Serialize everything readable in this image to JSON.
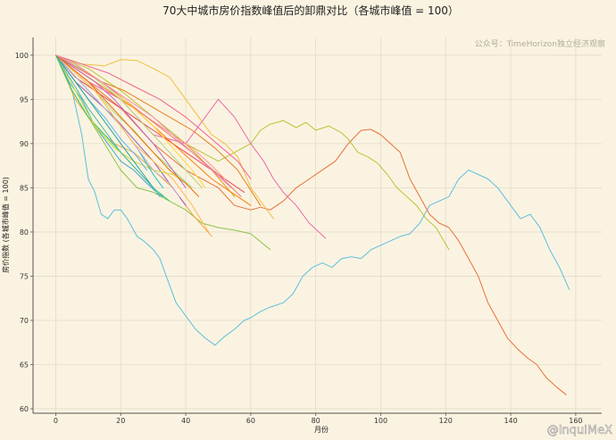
{
  "chart_data": {
    "type": "line",
    "title": "70大中城市房价指数峰值后的卸鼎对比（各城市峰值 = 100）",
    "xlabel": "月份",
    "ylabel": "房价指数 (各城市峰值 = 100)",
    "xlim": [
      -7,
      168
    ],
    "ylim": [
      59.5,
      102
    ],
    "xticks": [
      0,
      20,
      40,
      60,
      80,
      100,
      120,
      140,
      160
    ],
    "xtick_labels": [
      "0",
      "20",
      "40",
      "60",
      "80",
      "100",
      "120",
      "140",
      "160"
    ],
    "yticks": [
      60,
      65,
      70,
      75,
      80,
      85,
      90,
      95,
      100
    ],
    "ytick_labels": [
      "60",
      "65",
      "70",
      "75",
      "80",
      "85",
      "90",
      "95",
      "100"
    ],
    "grid": true,
    "watermark": "公众号：TimeHorizon独立经济观察",
    "credit": "@InquiMeX",
    "series": [
      {
        "color": "#5bc0de",
        "x": [
          0,
          5,
          8,
          10,
          12,
          14,
          16,
          18,
          20,
          22,
          25,
          27,
          30,
          32,
          35,
          37,
          40,
          43,
          46,
          49,
          52,
          55,
          58,
          60,
          63,
          66,
          70,
          73,
          76,
          79,
          82,
          85,
          88,
          91,
          94,
          97,
          100,
          103,
          106,
          109,
          112,
          115,
          118,
          121,
          124,
          127,
          130,
          133,
          136,
          140,
          143,
          146,
          149,
          152,
          155,
          158
        ],
        "y": [
          100,
          96,
          91,
          86,
          84.5,
          82,
          81.5,
          82.5,
          82.5,
          81.5,
          79.5,
          79,
          78,
          77,
          74,
          72,
          70.5,
          69,
          68,
          67.2,
          68.2,
          69,
          70,
          70.3,
          71,
          71.5,
          72,
          73,
          75,
          76,
          76.5,
          76,
          77,
          77.2,
          77,
          78,
          78.5,
          79,
          79.5,
          79.8,
          81,
          83,
          83.5,
          84,
          86,
          87,
          86.5,
          86,
          85,
          83,
          81.5,
          82,
          80.5,
          78,
          76,
          73.5
        ]
      },
      {
        "color": "#e8703a",
        "x": [
          0,
          10,
          20,
          30,
          40,
          50,
          55,
          60,
          63,
          66,
          70,
          74,
          78,
          82,
          86,
          90,
          94,
          97,
          100,
          103,
          106,
          109,
          112,
          115,
          118,
          121,
          124,
          127,
          130,
          133,
          136,
          139,
          142,
          145,
          148,
          151,
          154,
          157
        ],
        "y": [
          100,
          97,
          94,
          90,
          87,
          85,
          83,
          82.5,
          82.8,
          82.5,
          83.5,
          85,
          86,
          87,
          88,
          90,
          91.5,
          91.6,
          91,
          90,
          89,
          86,
          84,
          82,
          81,
          80.5,
          79,
          77,
          75,
          72,
          70,
          68,
          66.8,
          65.8,
          65,
          63.5,
          62.5,
          61.6
        ]
      },
      {
        "color": "#b5c637",
        "x": [
          0,
          10,
          20,
          30,
          40,
          50,
          55,
          60,
          63,
          66,
          70,
          74,
          77,
          80,
          84,
          88,
          90,
          93,
          96,
          99,
          102,
          105,
          108,
          111,
          114,
          117,
          121
        ],
        "y": [
          100,
          98.5,
          96,
          93,
          90,
          88,
          89,
          90,
          91.5,
          92.2,
          92.6,
          91.8,
          92.4,
          91.5,
          92,
          91.2,
          90.5,
          89,
          88.5,
          87.8,
          86.5,
          85,
          84,
          83,
          81.5,
          80.5,
          78
        ]
      },
      {
        "color": "#f0c041",
        "x": [
          0,
          8,
          15,
          20,
          25,
          30,
          35,
          40,
          44,
          48,
          52,
          56,
          60,
          64,
          67
        ],
        "y": [
          100,
          99,
          98.8,
          99.5,
          99.4,
          98.5,
          97.5,
          95,
          93,
          91,
          90,
          88.5,
          85,
          83,
          81.5
        ]
      },
      {
        "color": "#e86aa8",
        "x": [
          0,
          10,
          20,
          30,
          40,
          46,
          50,
          55,
          60,
          64,
          67,
          70,
          74,
          78,
          83
        ],
        "y": [
          100,
          97,
          95,
          91,
          90,
          93,
          95,
          93,
          90,
          88,
          86,
          84.5,
          83,
          81,
          79.3
        ]
      },
      {
        "color": "#8bc34a",
        "x": [
          0,
          5,
          10,
          15,
          20,
          25,
          30,
          35,
          40,
          45,
          50,
          55,
          60,
          66
        ],
        "y": [
          100,
          96,
          93,
          90,
          87,
          85,
          84.5,
          83.5,
          82.5,
          81,
          80.5,
          80.2,
          79.8,
          78
        ]
      },
      {
        "color": "#f4a742",
        "x": [
          0,
          6,
          12,
          18,
          24,
          30,
          36,
          42,
          48
        ],
        "y": [
          100,
          95,
          92,
          90,
          89,
          87,
          85,
          82,
          79.5
        ]
      },
      {
        "color": "#3fa7d6",
        "x": [
          0,
          4,
          8,
          12,
          16,
          20,
          24,
          28,
          31,
          33
        ],
        "y": [
          100,
          97,
          95,
          92,
          90,
          88,
          87,
          85.5,
          84.5,
          84
        ]
      },
      {
        "color": "#e94b5a",
        "x": [
          0,
          6,
          12,
          18,
          24,
          30,
          36,
          42,
          48,
          54,
          58
        ],
        "y": [
          100,
          97.5,
          96,
          94.5,
          93,
          91.5,
          90,
          88.5,
          87,
          85.5,
          84.5
        ]
      },
      {
        "color": "#9b59b6",
        "x": [
          0,
          6,
          12,
          18,
          24,
          30,
          36,
          40
        ],
        "y": [
          100,
          97,
          95,
          93,
          90.5,
          88,
          85,
          83
        ]
      },
      {
        "color": "#2ecc71",
        "x": [
          0,
          5,
          10,
          15,
          20,
          25,
          30,
          35
        ],
        "y": [
          100,
          96,
          93,
          91,
          89,
          87,
          85,
          83.5
        ]
      },
      {
        "color": "#d4a017",
        "x": [
          0,
          8,
          16,
          24,
          32,
          40,
          48,
          55
        ],
        "y": [
          100,
          98,
          96,
          94,
          92,
          90,
          87,
          84
        ]
      },
      {
        "color": "#e67e22",
        "x": [
          0,
          7,
          14,
          21,
          28,
          35,
          42,
          49,
          56,
          63
        ],
        "y": [
          100,
          98.5,
          97,
          96,
          94.5,
          93,
          91.5,
          89.5,
          87,
          83
        ]
      },
      {
        "color": "#cddc39",
        "x": [
          0,
          6,
          12,
          18,
          24,
          30,
          36,
          40
        ],
        "y": [
          100,
          96,
          92,
          89.5,
          88,
          87,
          86.5,
          85.5
        ]
      },
      {
        "color": "#17becf",
        "x": [
          0,
          5,
          10,
          15,
          20,
          25,
          30,
          33
        ],
        "y": [
          100,
          98,
          96,
          94,
          92,
          89.5,
          86.5,
          85
        ]
      },
      {
        "color": "#ff7f0e",
        "x": [
          0,
          6,
          12,
          18,
          24,
          30,
          36,
          42,
          48,
          54,
          60
        ],
        "y": [
          100,
          98.5,
          97,
          95.5,
          94,
          92,
          90,
          88,
          86,
          84.5,
          83
        ]
      },
      {
        "color": "#ff9896",
        "x": [
          0,
          6,
          12,
          18,
          24,
          30,
          36,
          42,
          48,
          52
        ],
        "y": [
          100,
          99,
          97.5,
          96,
          94,
          92.5,
          91,
          89.5,
          87.5,
          86
        ]
      },
      {
        "color": "#c5b0d5",
        "x": [
          0,
          5,
          10,
          15,
          20,
          25,
          30,
          35,
          38
        ],
        "y": [
          100,
          98,
          96,
          94,
          92,
          89.5,
          87,
          85.5,
          84
        ]
      },
      {
        "color": "#98df8a",
        "x": [
          0,
          6,
          12,
          18,
          24,
          30,
          36,
          42
        ],
        "y": [
          100,
          98,
          96,
          93.5,
          91.5,
          89,
          87,
          85
        ]
      },
      {
        "color": "#f06292",
        "x": [
          0,
          8,
          16,
          24,
          32,
          40,
          48,
          56,
          60
        ],
        "y": [
          100,
          99,
          98,
          96.5,
          95,
          93,
          90.5,
          88,
          86
        ]
      },
      {
        "color": "#4db6ac",
        "x": [
          0,
          5,
          10,
          15,
          20,
          25,
          30,
          32
        ],
        "y": [
          100,
          97,
          94,
          91.5,
          89,
          87,
          85,
          84
        ]
      },
      {
        "color": "#ffb74d",
        "x": [
          0,
          6,
          12,
          18,
          24,
          30,
          36,
          42,
          47
        ],
        "y": [
          100,
          98,
          96,
          93,
          90,
          88,
          86,
          83,
          80
        ]
      },
      {
        "color": "#aed581",
        "x": [
          0,
          5,
          10,
          15,
          20,
          25,
          30,
          35,
          40,
          45
        ],
        "y": [
          100,
          99,
          98,
          96.5,
          95,
          93,
          91,
          89,
          87,
          85
        ]
      },
      {
        "color": "#ba68c8",
        "x": [
          0,
          6,
          12,
          18,
          24,
          30,
          36,
          40
        ],
        "y": [
          100,
          98.5,
          97,
          95,
          92.5,
          90,
          87,
          85
        ]
      },
      {
        "color": "#e57373",
        "x": [
          0,
          7,
          14,
          21,
          28,
          35,
          42,
          50,
          57
        ],
        "y": [
          100,
          98.5,
          97,
          95,
          93,
          91,
          89,
          86.5,
          84
        ]
      },
      {
        "color": "#64b5f6",
        "x": [
          0,
          5,
          10,
          15,
          20,
          25,
          28
        ],
        "y": [
          100,
          97.5,
          95,
          93,
          90.5,
          88.5,
          87
        ]
      },
      {
        "color": "#fdd835",
        "x": [
          0,
          6,
          12,
          18,
          24,
          30,
          36,
          42,
          46
        ],
        "y": [
          100,
          99,
          97.5,
          96,
          94,
          92,
          89.5,
          87,
          85
        ]
      },
      {
        "color": "#ef6c00",
        "x": [
          0,
          5,
          10,
          15,
          20,
          25,
          30,
          35,
          40,
          44
        ],
        "y": [
          100,
          98.5,
          97,
          95,
          93,
          91,
          89,
          87,
          85.5,
          84
        ]
      },
      {
        "color": "#26a69a",
        "x": [
          0,
          4,
          8,
          12,
          16,
          20,
          24,
          28,
          30
        ],
        "y": [
          100,
          98,
          96,
          94,
          92,
          90,
          88,
          86,
          85
        ]
      },
      {
        "color": "#f48fb1",
        "x": [
          0,
          6,
          12,
          18,
          24,
          30,
          36,
          42,
          48,
          54
        ],
        "y": [
          100,
          99,
          97.5,
          96,
          94.5,
          93,
          91,
          89,
          87,
          85
        ]
      }
    ]
  }
}
